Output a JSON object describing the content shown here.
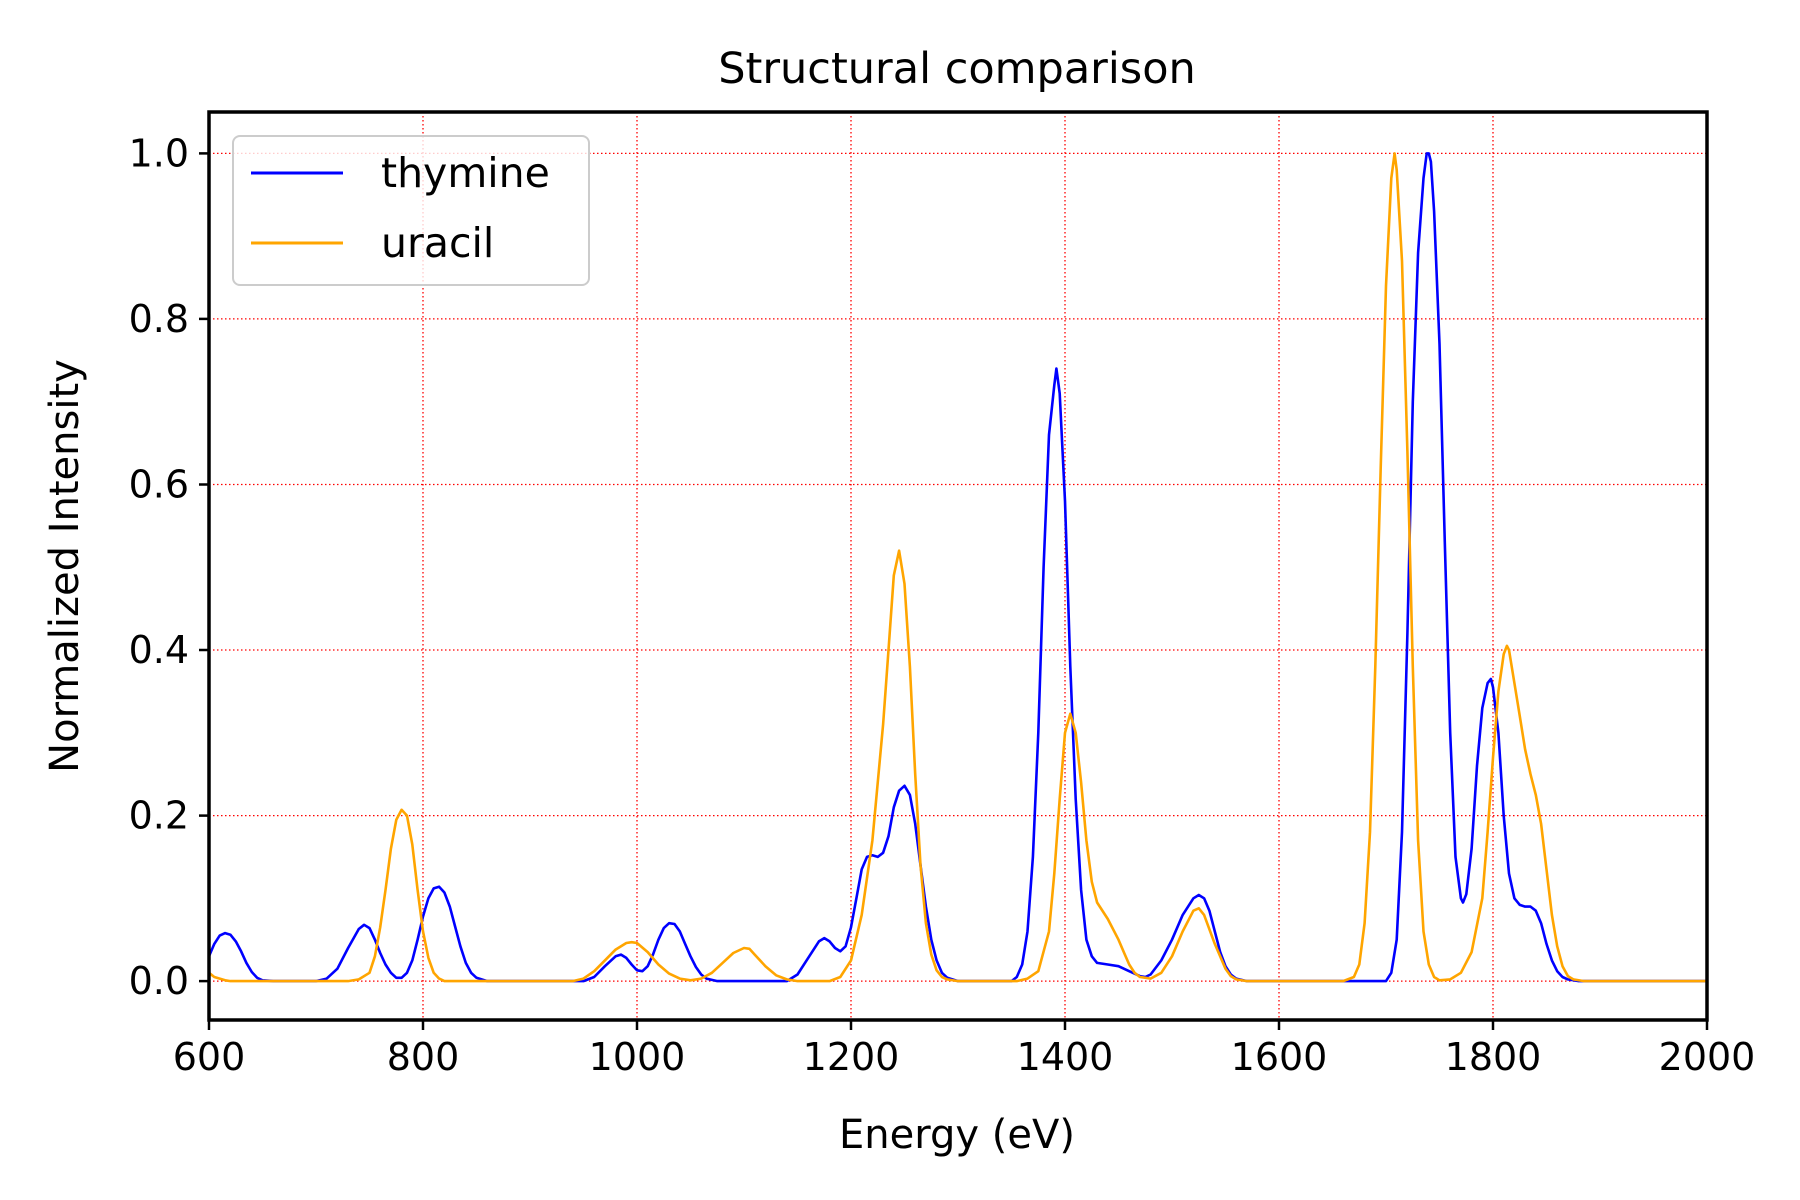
{
  "chart_data": {
    "type": "line",
    "title": "Structural comparison",
    "xlabel": "Energy (eV)",
    "ylabel": "Normalized Intensity",
    "xlim": [
      600,
      2000
    ],
    "ylim": [
      -0.047,
      1.05
    ],
    "xticks": [
      600,
      800,
      1000,
      1200,
      1400,
      1600,
      1800,
      2000
    ],
    "xtick_labels": [
      "600",
      "800",
      "1000",
      "1200",
      "1400",
      "1600",
      "1800",
      "2000"
    ],
    "yticks": [
      0.0,
      0.2,
      0.4,
      0.6,
      0.8,
      1.0
    ],
    "ytick_labels": [
      "0.0",
      "0.2",
      "0.4",
      "0.6",
      "0.8",
      "1.0"
    ],
    "grid": true,
    "grid_style": "dotted",
    "grid_color": "#ff0000",
    "legend_position": "top-left",
    "series": [
      {
        "name": "thymine",
        "color": "#0000ff",
        "points": [
          [
            600,
            0.03
          ],
          [
            605,
            0.045
          ],
          [
            610,
            0.055
          ],
          [
            615,
            0.058
          ],
          [
            620,
            0.056
          ],
          [
            625,
            0.048
          ],
          [
            630,
            0.036
          ],
          [
            635,
            0.022
          ],
          [
            640,
            0.011
          ],
          [
            645,
            0.004
          ],
          [
            650,
            0.001
          ],
          [
            660,
            0.0
          ],
          [
            700,
            0.0
          ],
          [
            710,
            0.003
          ],
          [
            720,
            0.015
          ],
          [
            730,
            0.04
          ],
          [
            740,
            0.063
          ],
          [
            745,
            0.068
          ],
          [
            750,
            0.064
          ],
          [
            755,
            0.05
          ],
          [
            760,
            0.034
          ],
          [
            765,
            0.02
          ],
          [
            770,
            0.01
          ],
          [
            775,
            0.004
          ],
          [
            780,
            0.004
          ],
          [
            785,
            0.01
          ],
          [
            790,
            0.025
          ],
          [
            795,
            0.05
          ],
          [
            800,
            0.078
          ],
          [
            805,
            0.1
          ],
          [
            810,
            0.112
          ],
          [
            815,
            0.114
          ],
          [
            820,
            0.107
          ],
          [
            825,
            0.09
          ],
          [
            830,
            0.066
          ],
          [
            835,
            0.042
          ],
          [
            840,
            0.022
          ],
          [
            845,
            0.01
          ],
          [
            850,
            0.004
          ],
          [
            860,
            0.0
          ],
          [
            950,
            0.0
          ],
          [
            960,
            0.005
          ],
          [
            970,
            0.018
          ],
          [
            980,
            0.03
          ],
          [
            985,
            0.032
          ],
          [
            990,
            0.028
          ],
          [
            995,
            0.02
          ],
          [
            1000,
            0.013
          ],
          [
            1005,
            0.012
          ],
          [
            1010,
            0.018
          ],
          [
            1015,
            0.032
          ],
          [
            1020,
            0.05
          ],
          [
            1025,
            0.064
          ],
          [
            1030,
            0.07
          ],
          [
            1035,
            0.069
          ],
          [
            1040,
            0.06
          ],
          [
            1045,
            0.045
          ],
          [
            1050,
            0.03
          ],
          [
            1055,
            0.017
          ],
          [
            1060,
            0.008
          ],
          [
            1065,
            0.003
          ],
          [
            1075,
            0.0
          ],
          [
            1140,
            0.0
          ],
          [
            1150,
            0.008
          ],
          [
            1160,
            0.028
          ],
          [
            1170,
            0.048
          ],
          [
            1175,
            0.052
          ],
          [
            1180,
            0.048
          ],
          [
            1185,
            0.04
          ],
          [
            1190,
            0.036
          ],
          [
            1195,
            0.042
          ],
          [
            1200,
            0.065
          ],
          [
            1205,
            0.1
          ],
          [
            1210,
            0.135
          ],
          [
            1215,
            0.15
          ],
          [
            1220,
            0.152
          ],
          [
            1225,
            0.15
          ],
          [
            1230,
            0.155
          ],
          [
            1235,
            0.175
          ],
          [
            1240,
            0.21
          ],
          [
            1245,
            0.23
          ],
          [
            1250,
            0.236
          ],
          [
            1255,
            0.225
          ],
          [
            1260,
            0.19
          ],
          [
            1265,
            0.14
          ],
          [
            1270,
            0.09
          ],
          [
            1275,
            0.05
          ],
          [
            1280,
            0.025
          ],
          [
            1285,
            0.01
          ],
          [
            1290,
            0.004
          ],
          [
            1300,
            0.0
          ],
          [
            1350,
            0.0
          ],
          [
            1355,
            0.005
          ],
          [
            1360,
            0.02
          ],
          [
            1365,
            0.06
          ],
          [
            1370,
            0.15
          ],
          [
            1375,
            0.3
          ],
          [
            1380,
            0.5
          ],
          [
            1385,
            0.66
          ],
          [
            1390,
            0.72
          ],
          [
            1392,
            0.74
          ],
          [
            1395,
            0.71
          ],
          [
            1400,
            0.58
          ],
          [
            1405,
            0.38
          ],
          [
            1410,
            0.22
          ],
          [
            1415,
            0.11
          ],
          [
            1420,
            0.05
          ],
          [
            1425,
            0.03
          ],
          [
            1430,
            0.022
          ],
          [
            1440,
            0.02
          ],
          [
            1450,
            0.018
          ],
          [
            1460,
            0.012
          ],
          [
            1470,
            0.006
          ],
          [
            1475,
            0.005
          ],
          [
            1480,
            0.008
          ],
          [
            1490,
            0.025
          ],
          [
            1500,
            0.05
          ],
          [
            1510,
            0.08
          ],
          [
            1520,
            0.1
          ],
          [
            1525,
            0.104
          ],
          [
            1530,
            0.1
          ],
          [
            1535,
            0.085
          ],
          [
            1540,
            0.06
          ],
          [
            1545,
            0.035
          ],
          [
            1550,
            0.018
          ],
          [
            1555,
            0.008
          ],
          [
            1560,
            0.003
          ],
          [
            1570,
            0.0
          ],
          [
            1680,
            0.0
          ],
          [
            1700,
            0.0
          ],
          [
            1705,
            0.01
          ],
          [
            1710,
            0.05
          ],
          [
            1715,
            0.18
          ],
          [
            1720,
            0.42
          ],
          [
            1725,
            0.7
          ],
          [
            1730,
            0.88
          ],
          [
            1735,
            0.97
          ],
          [
            1738,
            1.0
          ],
          [
            1740,
            1.0
          ],
          [
            1742,
            0.99
          ],
          [
            1745,
            0.93
          ],
          [
            1750,
            0.77
          ],
          [
            1755,
            0.53
          ],
          [
            1760,
            0.3
          ],
          [
            1765,
            0.15
          ],
          [
            1770,
            0.1
          ],
          [
            1772,
            0.095
          ],
          [
            1775,
            0.105
          ],
          [
            1780,
            0.16
          ],
          [
            1785,
            0.26
          ],
          [
            1790,
            0.33
          ],
          [
            1795,
            0.36
          ],
          [
            1798,
            0.365
          ],
          [
            1800,
            0.355
          ],
          [
            1805,
            0.3
          ],
          [
            1810,
            0.2
          ],
          [
            1815,
            0.13
          ],
          [
            1820,
            0.1
          ],
          [
            1825,
            0.092
          ],
          [
            1830,
            0.09
          ],
          [
            1835,
            0.09
          ],
          [
            1840,
            0.085
          ],
          [
            1845,
            0.07
          ],
          [
            1850,
            0.045
          ],
          [
            1855,
            0.025
          ],
          [
            1860,
            0.012
          ],
          [
            1865,
            0.005
          ],
          [
            1870,
            0.002
          ],
          [
            1880,
            0.0
          ],
          [
            2000,
            0.0
          ]
        ]
      },
      {
        "name": "uracil",
        "color": "#ffa500",
        "points": [
          [
            600,
            0.01
          ],
          [
            605,
            0.005
          ],
          [
            610,
            0.003
          ],
          [
            615,
            0.001
          ],
          [
            620,
            0.0
          ],
          [
            730,
            0.0
          ],
          [
            740,
            0.002
          ],
          [
            750,
            0.01
          ],
          [
            755,
            0.03
          ],
          [
            760,
            0.065
          ],
          [
            765,
            0.11
          ],
          [
            770,
            0.16
          ],
          [
            775,
            0.195
          ],
          [
            780,
            0.207
          ],
          [
            785,
            0.2
          ],
          [
            790,
            0.165
          ],
          [
            795,
            0.11
          ],
          [
            800,
            0.06
          ],
          [
            805,
            0.028
          ],
          [
            810,
            0.01
          ],
          [
            815,
            0.003
          ],
          [
            820,
            0.0
          ],
          [
            940,
            0.0
          ],
          [
            950,
            0.003
          ],
          [
            960,
            0.012
          ],
          [
            970,
            0.025
          ],
          [
            980,
            0.038
          ],
          [
            990,
            0.046
          ],
          [
            995,
            0.047
          ],
          [
            1000,
            0.046
          ],
          [
            1010,
            0.035
          ],
          [
            1020,
            0.02
          ],
          [
            1030,
            0.009
          ],
          [
            1040,
            0.003
          ],
          [
            1050,
            0.001
          ],
          [
            1060,
            0.003
          ],
          [
            1070,
            0.01
          ],
          [
            1080,
            0.022
          ],
          [
            1090,
            0.034
          ],
          [
            1100,
            0.04
          ],
          [
            1105,
            0.039
          ],
          [
            1110,
            0.032
          ],
          [
            1120,
            0.018
          ],
          [
            1130,
            0.007
          ],
          [
            1140,
            0.002
          ],
          [
            1150,
            0.0
          ],
          [
            1180,
            0.0
          ],
          [
            1190,
            0.005
          ],
          [
            1200,
            0.025
          ],
          [
            1210,
            0.08
          ],
          [
            1220,
            0.17
          ],
          [
            1230,
            0.31
          ],
          [
            1235,
            0.4
          ],
          [
            1240,
            0.49
          ],
          [
            1245,
            0.52
          ],
          [
            1250,
            0.48
          ],
          [
            1255,
            0.38
          ],
          [
            1260,
            0.25
          ],
          [
            1265,
            0.14
          ],
          [
            1270,
            0.07
          ],
          [
            1275,
            0.032
          ],
          [
            1280,
            0.013
          ],
          [
            1285,
            0.005
          ],
          [
            1290,
            0.002
          ],
          [
            1300,
            0.0
          ],
          [
            1355,
            0.0
          ],
          [
            1365,
            0.003
          ],
          [
            1375,
            0.012
          ],
          [
            1385,
            0.06
          ],
          [
            1390,
            0.13
          ],
          [
            1395,
            0.22
          ],
          [
            1400,
            0.3
          ],
          [
            1405,
            0.323
          ],
          [
            1410,
            0.3
          ],
          [
            1415,
            0.24
          ],
          [
            1420,
            0.17
          ],
          [
            1425,
            0.12
          ],
          [
            1430,
            0.095
          ],
          [
            1440,
            0.075
          ],
          [
            1450,
            0.05
          ],
          [
            1455,
            0.035
          ],
          [
            1460,
            0.02
          ],
          [
            1465,
            0.01
          ],
          [
            1470,
            0.005
          ],
          [
            1480,
            0.003
          ],
          [
            1490,
            0.01
          ],
          [
            1500,
            0.03
          ],
          [
            1510,
            0.06
          ],
          [
            1520,
            0.085
          ],
          [
            1525,
            0.088
          ],
          [
            1530,
            0.08
          ],
          [
            1540,
            0.045
          ],
          [
            1550,
            0.015
          ],
          [
            1555,
            0.006
          ],
          [
            1560,
            0.002
          ],
          [
            1570,
            0.0
          ],
          [
            1660,
            0.0
          ],
          [
            1670,
            0.005
          ],
          [
            1675,
            0.02
          ],
          [
            1680,
            0.07
          ],
          [
            1685,
            0.18
          ],
          [
            1690,
            0.38
          ],
          [
            1695,
            0.62
          ],
          [
            1700,
            0.84
          ],
          [
            1705,
            0.97
          ],
          [
            1708,
            1.0
          ],
          [
            1710,
            0.98
          ],
          [
            1715,
            0.87
          ],
          [
            1720,
            0.64
          ],
          [
            1725,
            0.38
          ],
          [
            1730,
            0.17
          ],
          [
            1735,
            0.06
          ],
          [
            1740,
            0.02
          ],
          [
            1745,
            0.005
          ],
          [
            1750,
            0.001
          ],
          [
            1760,
            0.002
          ],
          [
            1770,
            0.01
          ],
          [
            1780,
            0.035
          ],
          [
            1790,
            0.1
          ],
          [
            1795,
            0.18
          ],
          [
            1800,
            0.27
          ],
          [
            1805,
            0.35
          ],
          [
            1810,
            0.395
          ],
          [
            1813,
            0.405
          ],
          [
            1815,
            0.4
          ],
          [
            1820,
            0.36
          ],
          [
            1825,
            0.32
          ],
          [
            1830,
            0.28
          ],
          [
            1835,
            0.25
          ],
          [
            1840,
            0.225
          ],
          [
            1845,
            0.19
          ],
          [
            1850,
            0.135
          ],
          [
            1855,
            0.08
          ],
          [
            1860,
            0.042
          ],
          [
            1865,
            0.018
          ],
          [
            1870,
            0.006
          ],
          [
            1875,
            0.002
          ],
          [
            1885,
            0.0
          ],
          [
            2000,
            0.0
          ]
        ]
      }
    ]
  }
}
